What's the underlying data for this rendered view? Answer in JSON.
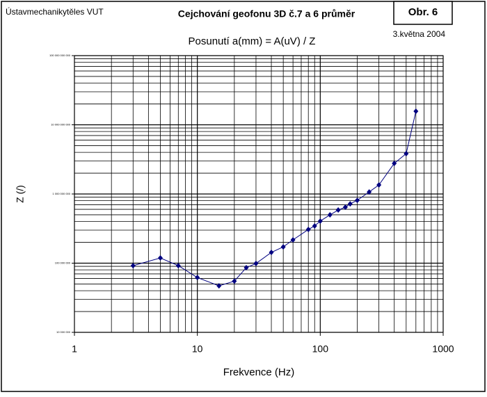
{
  "chart_data": {
    "type": "line",
    "title": "Cejchování geofonu 3D č.7 a 6 průměr",
    "subtitle": "Posunutí a(mm) = A(uV) /  Z",
    "institution": "Ústavmechanikytěles VUT",
    "figure_label": "Obr. 6",
    "date": "3.května 2004",
    "x_label": "Frekvence (Hz)",
    "y_label": "Z (/)",
    "x_log": true,
    "y_log": true,
    "grid": true,
    "xlim": [
      1,
      1000
    ],
    "xticks": [
      1,
      10,
      100,
      1000
    ],
    "ylim": [
      10000000,
      100000000000
    ],
    "yticks": [
      {
        "value": 10000000,
        "label": "10 000 000"
      },
      {
        "value": 100000000,
        "label": "100 000 000"
      },
      {
        "value": 1000000000,
        "label": "1 000 000 000"
      },
      {
        "value": 10000000000,
        "label": "10 000 000 000"
      },
      {
        "value": 100000000000,
        "label": "100 000 000 000"
      }
    ],
    "series": [
      {
        "color": "#000080",
        "x": [
          3,
          5,
          7,
          10,
          15,
          20,
          25,
          30,
          40,
          50,
          60,
          80,
          90,
          100,
          120,
          140,
          160,
          175,
          200,
          250,
          300,
          400,
          500,
          600
        ],
        "values": [
          92000000,
          119000000,
          92000000,
          62000000,
          47000000,
          55000000,
          86000000,
          99000000,
          143000000,
          172000000,
          217000000,
          307000000,
          345000000,
          406000000,
          499000000,
          587000000,
          644000000,
          720000000,
          810000000,
          1070000000,
          1350000000,
          2770000000,
          3830000000,
          15700000000
        ]
      }
    ]
  }
}
